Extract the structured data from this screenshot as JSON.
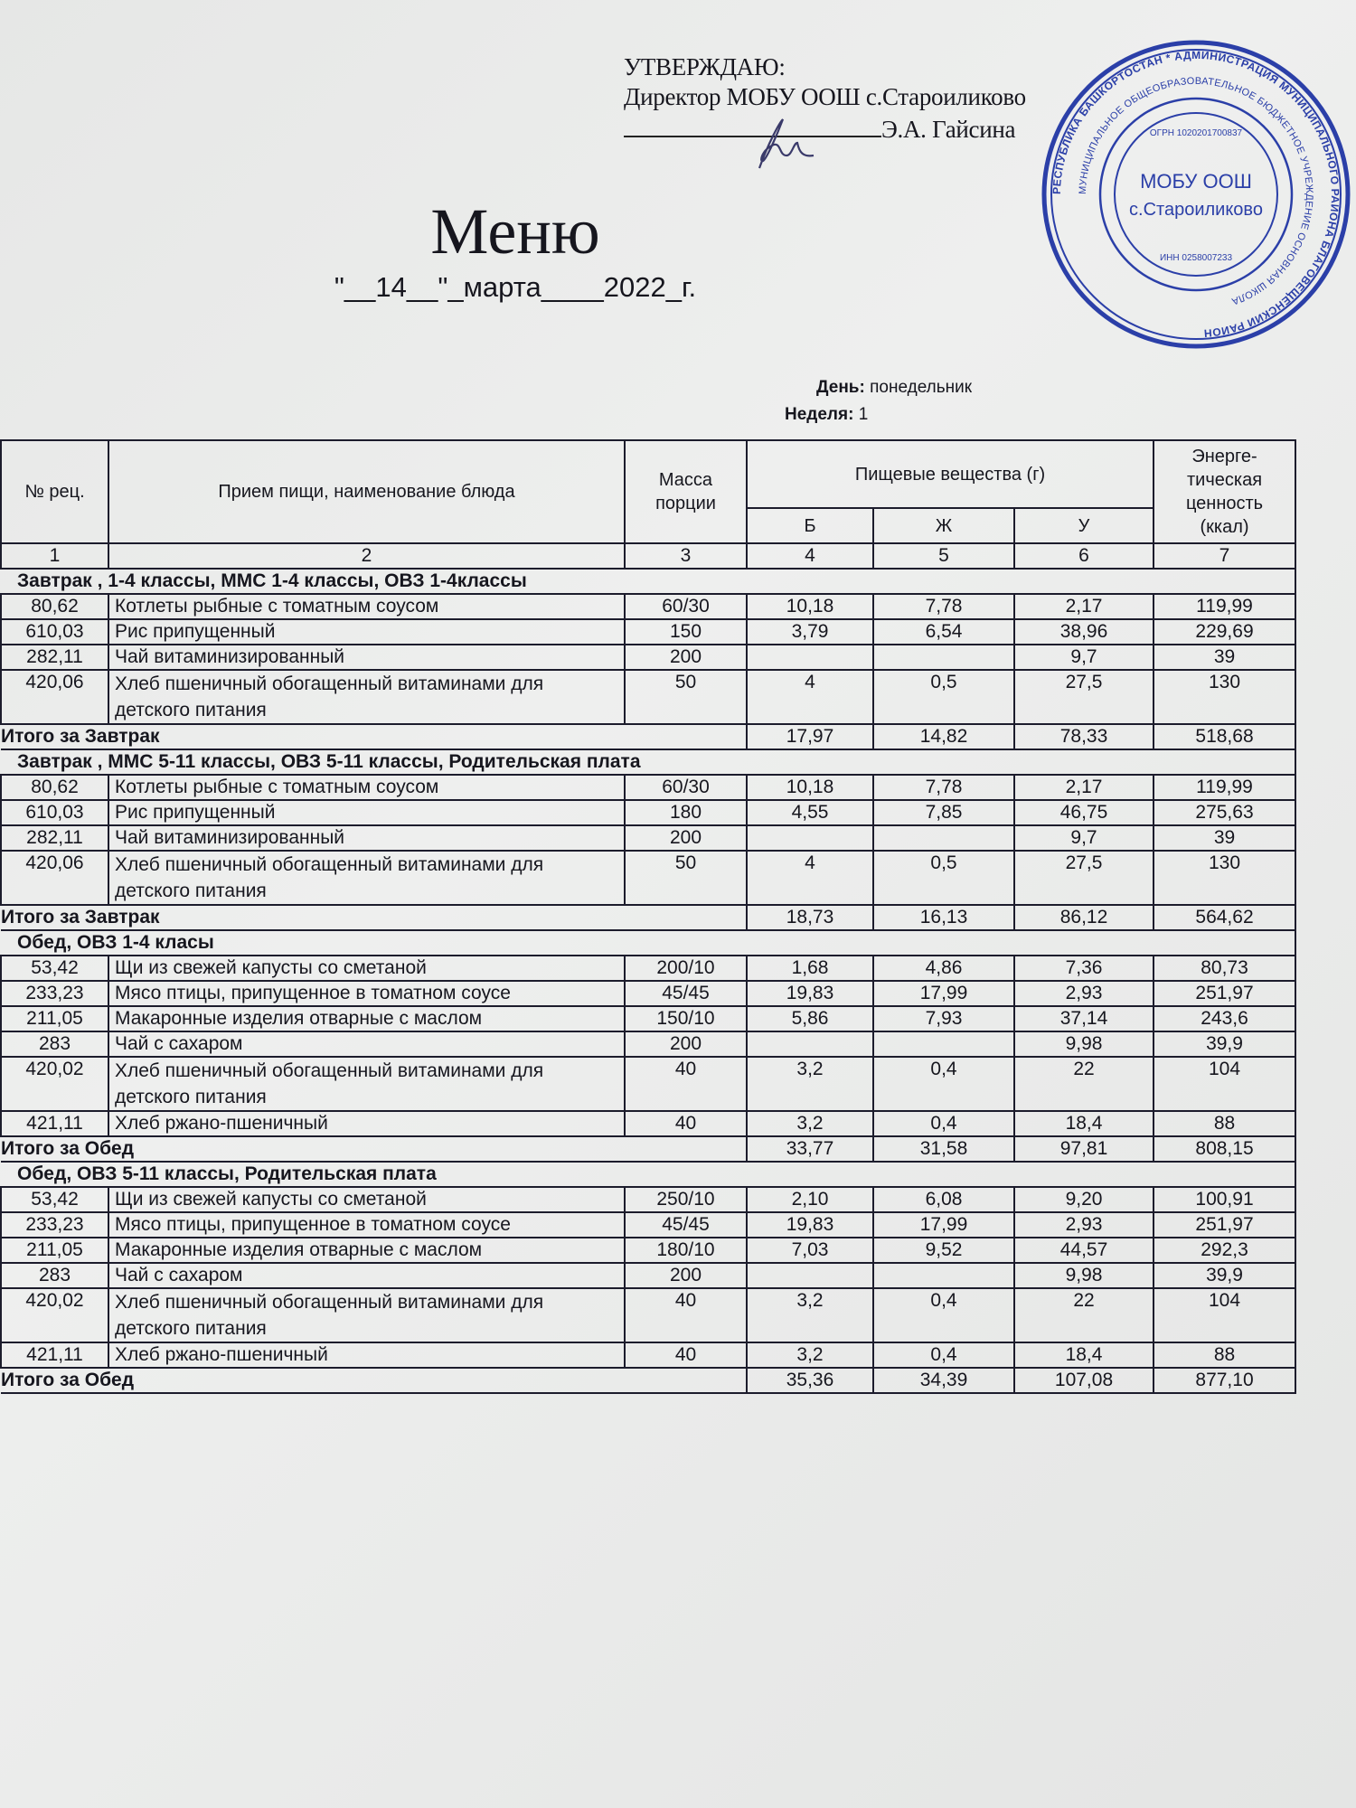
{
  "approval": {
    "label": "УТВЕРЖДАЮ:",
    "position": "Директор МОБУ ООШ с.Староиликово",
    "signer": "Э.А. Гайсина"
  },
  "stamp": {
    "center_line1": "МОБУ ООШ",
    "center_line2": "с.Староиликово",
    "inn": "ИНН 0258007233",
    "ogrn": "ОГРН 1020201700837",
    "ring_outer": "РЕСПУБЛИКА БАШКОРТОСТАН * АДМИНИСТРАЦИЯ МУНИЦИПАЛЬНОГО РАЙОНА БЛАГОВЕЩЕНСКИЙ РАЙОН РЕСПУБЛИКИ БАШКОРТОСТАН",
    "ring_inner": "МУНИЦИПАЛЬНОЕ ОБЩЕОБРАЗОВАТЕЛЬНОЕ БЮДЖЕТНОЕ УЧРЕЖДЕНИЕ ОСНОВНАЯ ОБЩЕОБРАЗОВАТЕЛЬНАЯ ШКОЛА СЕЛА СТАРОИЛИКОВО",
    "color": "#2b3fa8"
  },
  "title": "Меню",
  "date": "\"__14__\"_марта____2022_г.",
  "day": {
    "label": "День:",
    "value": "понедельник"
  },
  "week": {
    "label": "Неделя:",
    "value": "1"
  },
  "header": {
    "rec": "№ рец.",
    "dish": "Прием пищи, наименование блюда",
    "mass": "Масса порции",
    "nutrients": "Пищевые вещества (г)",
    "b": "Б",
    "zh": "Ж",
    "u": "У",
    "energy": "Энерге-тическая ценность (ккал)",
    "col_numbers": [
      "1",
      "2",
      "3",
      "4",
      "5",
      "6",
      "7"
    ]
  },
  "sections": [
    {
      "title": "Завтрак , 1-4 классы, ММС 1-4 классы, ОВЗ 1-4классы",
      "rows": [
        {
          "rec": "80,62",
          "dish": "Котлеты рыбные с томатным соусом",
          "mass": "60/30",
          "b": "10,18",
          "zh": "7,78",
          "u": "2,17",
          "kcal": "119,99"
        },
        {
          "rec": "610,03",
          "dish": "Рис припущенный",
          "mass": "150",
          "b": "3,79",
          "zh": "6,54",
          "u": "38,96",
          "kcal": "229,69"
        },
        {
          "rec": "282,11",
          "dish": "Чай витаминизированный",
          "mass": "200",
          "b": "",
          "zh": "",
          "u": "9,7",
          "kcal": "39"
        },
        {
          "rec": "420,06",
          "dish": "Хлеб пшеничный обогащенный витаминами для детского питания",
          "mass": "50",
          "b": "4",
          "zh": "0,5",
          "u": "27,5",
          "kcal": "130"
        }
      ],
      "total": {
        "label": "Итого за Завтрак",
        "b": "17,97",
        "zh": "14,82",
        "u": "78,33",
        "kcal": "518,68"
      }
    },
    {
      "title": "Завтрак , ММС 5-11 классы, ОВЗ 5-11 классы, Родительская плата",
      "rows": [
        {
          "rec": "80,62",
          "dish": "Котлеты рыбные с томатным соусом",
          "mass": "60/30",
          "b": "10,18",
          "zh": "7,78",
          "u": "2,17",
          "kcal": "119,99"
        },
        {
          "rec": "610,03",
          "dish": "Рис припущенный",
          "mass": "180",
          "b": "4,55",
          "zh": "7,85",
          "u": "46,75",
          "kcal": "275,63"
        },
        {
          "rec": "282,11",
          "dish": "Чай витаминизированный",
          "mass": "200",
          "b": "",
          "zh": "",
          "u": "9,7",
          "kcal": "39"
        },
        {
          "rec": "420,06",
          "dish": "Хлеб пшеничный обогащенный витаминами для детского питания",
          "mass": "50",
          "b": "4",
          "zh": "0,5",
          "u": "27,5",
          "kcal": "130"
        }
      ],
      "total": {
        "label": "Итого за Завтрак",
        "b": "18,73",
        "zh": "16,13",
        "u": "86,12",
        "kcal": "564,62"
      }
    },
    {
      "title": "Обед, ОВЗ 1-4 класы",
      "rows": [
        {
          "rec": "53,42",
          "dish": "Щи из свежей капусты со сметаной",
          "mass": "200/10",
          "b": "1,68",
          "zh": "4,86",
          "u": "7,36",
          "kcal": "80,73"
        },
        {
          "rec": "233,23",
          "dish": "Мясо птицы, припущенное в томатном соусе",
          "mass": "45/45",
          "b": "19,83",
          "zh": "17,99",
          "u": "2,93",
          "kcal": "251,97"
        },
        {
          "rec": "211,05",
          "dish": "Макаронные изделия отварные с маслом",
          "mass": "150/10",
          "b": "5,86",
          "zh": "7,93",
          "u": "37,14",
          "kcal": "243,6"
        },
        {
          "rec": "283",
          "dish": "Чай с сахаром",
          "mass": "200",
          "b": "",
          "zh": "",
          "u": "9,98",
          "kcal": "39,9"
        },
        {
          "rec": "420,02",
          "dish": "Хлеб пшеничный обогащенный витаминами для детского питания",
          "mass": "40",
          "b": "3,2",
          "zh": "0,4",
          "u": "22",
          "kcal": "104"
        },
        {
          "rec": "421,11",
          "dish": "Хлеб ржано-пшеничный",
          "mass": "40",
          "b": "3,2",
          "zh": "0,4",
          "u": "18,4",
          "kcal": "88"
        }
      ],
      "total": {
        "label": "Итого за Обед",
        "b": "33,77",
        "zh": "31,58",
        "u": "97,81",
        "kcal": "808,15"
      }
    },
    {
      "title": "Обед, ОВЗ 5-11 классы, Родительская плата",
      "rows": [
        {
          "rec": "53,42",
          "dish": "Щи из свежей капусты со сметаной",
          "mass": "250/10",
          "b": "2,10",
          "zh": "6,08",
          "u": "9,20",
          "kcal": "100,91"
        },
        {
          "rec": "233,23",
          "dish": "Мясо птицы, припущенное в томатном соусе",
          "mass": "45/45",
          "b": "19,83",
          "zh": "17,99",
          "u": "2,93",
          "kcal": "251,97"
        },
        {
          "rec": "211,05",
          "dish": "Макаронные изделия отварные с маслом",
          "mass": "180/10",
          "b": "7,03",
          "zh": "9,52",
          "u": "44,57",
          "kcal": "292,3"
        },
        {
          "rec": "283",
          "dish": "Чай с сахаром",
          "mass": "200",
          "b": "",
          "zh": "",
          "u": "9,98",
          "kcal": "39,9"
        },
        {
          "rec": "420,02",
          "dish": "Хлеб пшеничный обогащенный витаминами для детского питания",
          "mass": "40",
          "b": "3,2",
          "zh": "0,4",
          "u": "22",
          "kcal": "104"
        },
        {
          "rec": "421,11",
          "dish": "Хлеб ржано-пшеничный",
          "mass": "40",
          "b": "3,2",
          "zh": "0,4",
          "u": "18,4",
          "kcal": "88"
        }
      ],
      "total": {
        "label": "Итого за Обед",
        "b": "35,36",
        "zh": "34,39",
        "u": "107,08",
        "kcal": "877,10"
      }
    }
  ]
}
